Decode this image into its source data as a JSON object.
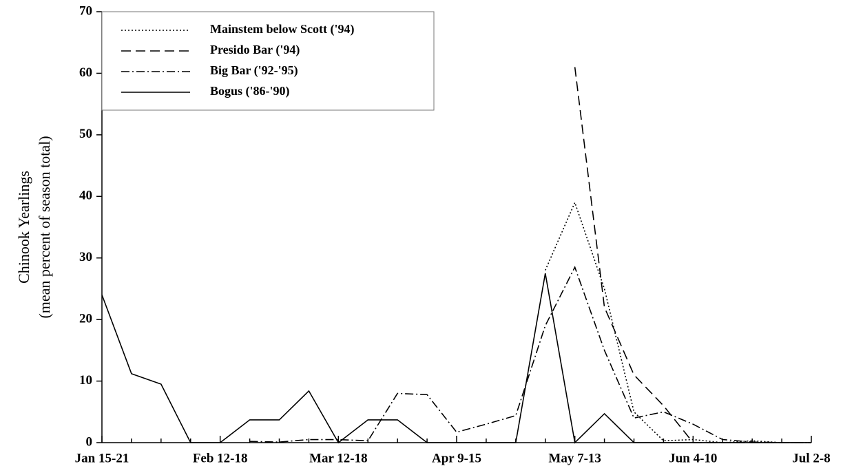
{
  "chart_data": {
    "type": "line",
    "y_label_lines": [
      "Chinook Yearlings",
      "(mean percent of season total)"
    ],
    "categories": [
      "Jan 15-21",
      null,
      null,
      null,
      "Feb 12-18",
      null,
      null,
      null,
      "Mar 12-18",
      null,
      null,
      null,
      "Apr 9-15",
      null,
      null,
      null,
      "May 7-13",
      null,
      null,
      null,
      "Jun 4-10",
      null,
      null,
      null,
      "Jul 2-8"
    ],
    "series": [
      {
        "name": "Mainstem below Scott ('94)",
        "color": "#000",
        "dash": "2,3",
        "values": [
          null,
          null,
          null,
          null,
          null,
          null,
          null,
          null,
          null,
          null,
          null,
          null,
          null,
          null,
          null,
          28,
          39,
          25,
          5,
          0.3,
          0.5,
          0,
          0.3,
          0,
          0
        ]
      },
      {
        "name": "Presido Bar ('94)",
        "color": "#000",
        "dash": "14,7",
        "values": [
          null,
          null,
          null,
          null,
          null,
          null,
          null,
          null,
          null,
          null,
          null,
          null,
          null,
          null,
          null,
          null,
          61,
          22,
          11,
          6,
          0,
          0,
          0,
          0,
          0
        ]
      },
      {
        "name": "Big Bar ('92-'95)",
        "color": "#000",
        "dash": "12,4,2,4",
        "values": [
          null,
          null,
          null,
          null,
          null,
          0.2,
          0.1,
          0.5,
          0.5,
          0.3,
          8,
          7.8,
          1.7,
          3,
          4.4,
          19,
          28.5,
          15,
          4,
          5,
          3,
          0.5,
          0.1,
          0,
          0
        ]
      },
      {
        "name": "Bogus ('86-'90)",
        "color": "#000",
        "dash": "",
        "values": [
          24,
          11.2,
          9.5,
          0,
          0,
          3.7,
          3.7,
          8.4,
          0,
          3.7,
          3.7,
          0,
          0,
          0,
          0,
          27.5,
          0,
          4.7,
          0,
          0,
          0,
          0,
          0,
          0,
          0
        ]
      }
    ],
    "ylim": [
      0,
      70
    ],
    "yticks": [
      0,
      10,
      20,
      30,
      40,
      50,
      60,
      70
    ],
    "legend": "upper-left"
  }
}
